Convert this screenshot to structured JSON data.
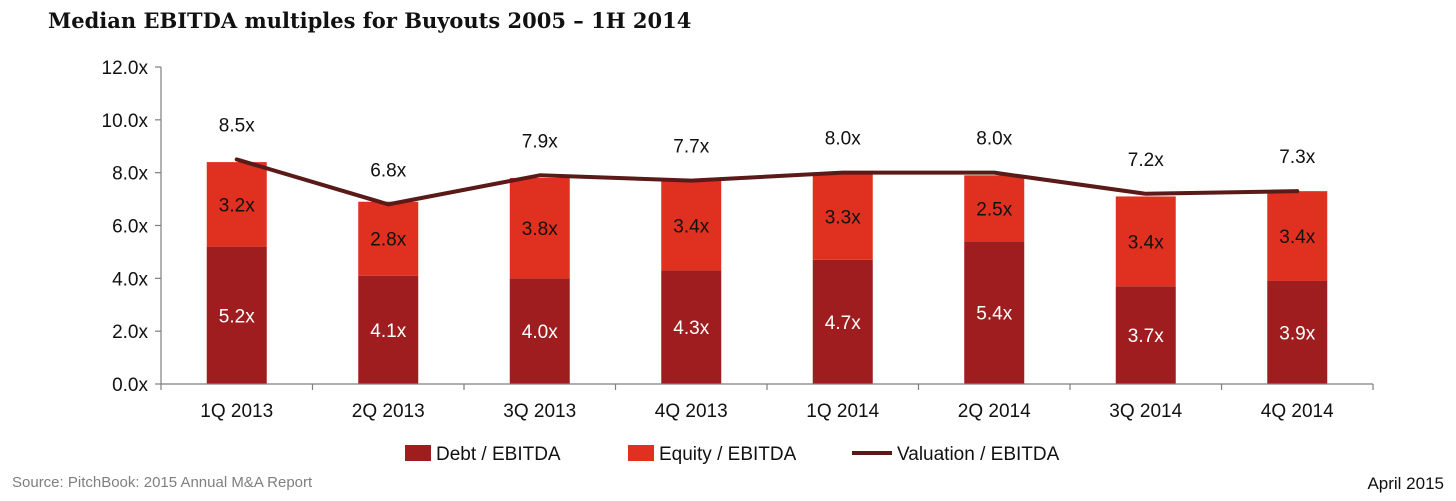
{
  "title": "Median EBITDA multiples for Buyouts 2005 – 1H 2014",
  "source": "Source: PitchBook: 2015 Annual M&A Report",
  "date": "April 2015",
  "colors": {
    "debt": "#9f1d1e",
    "equity": "#e03020",
    "valuation": "#5a1a18",
    "axis": "#7f7f7f",
    "text": "#111111"
  },
  "chart_data": {
    "type": "bar",
    "stacked": true,
    "categories": [
      "1Q 2013",
      "2Q 2013",
      "3Q 2013",
      "4Q 2013",
      "1Q 2014",
      "2Q 2014",
      "3Q 2014",
      "4Q 2014"
    ],
    "series": [
      {
        "name": "Debt / EBITDA",
        "type": "bar",
        "values": [
          5.2,
          4.1,
          4.0,
          4.3,
          4.7,
          5.4,
          3.7,
          3.9
        ],
        "labels": [
          "5.2x",
          "4.1x",
          "4.0x",
          "4.3x",
          "4.7x",
          "5.4x",
          "3.7x",
          "3.9x"
        ]
      },
      {
        "name": "Equity / EBITDA",
        "type": "bar",
        "values": [
          3.2,
          2.8,
          3.8,
          3.4,
          3.3,
          2.5,
          3.4,
          3.4
        ],
        "labels": [
          "3.2x",
          "2.8x",
          "3.8x",
          "3.4x",
          "3.3x",
          "2.5x",
          "3.4x",
          "3.4x"
        ]
      },
      {
        "name": "Valuation / EBITDA",
        "type": "line",
        "values": [
          8.5,
          6.8,
          7.9,
          7.7,
          8.0,
          8.0,
          7.2,
          7.3
        ],
        "labels": [
          "8.5x",
          "6.8x",
          "7.9x",
          "7.7x",
          "8.0x",
          "8.0x",
          "7.2x",
          "7.3x"
        ]
      }
    ],
    "ylim": [
      0,
      12
    ],
    "yticks": [
      0,
      2,
      4,
      6,
      8,
      10,
      12
    ],
    "ytick_labels": [
      "0.0x",
      "2.0x",
      "4.0x",
      "6.0x",
      "8.0x",
      "10.0x",
      "12.0x"
    ],
    "grid": false,
    "legend": "bottom"
  }
}
